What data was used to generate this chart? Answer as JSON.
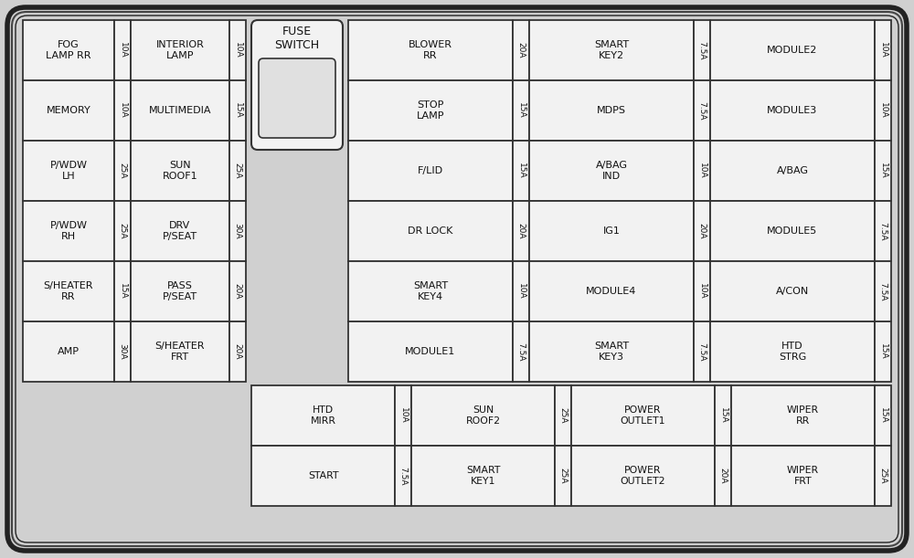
{
  "bg_color": "#d0d0d0",
  "cell_bg": "#f2f2f2",
  "cell_edge": "#333333",
  "figsize": [
    10.0,
    6.11
  ],
  "left_fuses": [
    [
      [
        "FOG\nLAMP RR",
        "10A"
      ],
      [
        "INTERIOR\nLAMP",
        "10A"
      ]
    ],
    [
      [
        "MEMORY",
        "10A"
      ],
      [
        "MULTIMEDIA",
        "15A"
      ]
    ],
    [
      [
        "P/WDW\nLH",
        "25A"
      ],
      [
        "SUN\nROOF1",
        "25A"
      ]
    ],
    [
      [
        "P/WDW\nRH",
        "25A"
      ],
      [
        "DRV\nP/SEAT",
        "30A"
      ]
    ],
    [
      [
        "S/HEATER\nRR",
        "15A"
      ],
      [
        "PASS\nP/SEAT",
        "20A"
      ]
    ],
    [
      [
        "AMP",
        "30A"
      ],
      [
        "S/HEATER\nFRT",
        "20A"
      ]
    ]
  ],
  "right_fuses": [
    [
      [
        "BLOWER\nRR",
        "20A"
      ],
      [
        "SMART\nKEY2",
        "7.5A"
      ],
      [
        "MODULE2",
        "10A"
      ]
    ],
    [
      [
        "STOP\nLAMP",
        "15A"
      ],
      [
        "MDPS",
        "7.5A"
      ],
      [
        "MODULE3",
        "10A"
      ]
    ],
    [
      [
        "F/LID",
        "15A"
      ],
      [
        "A/BAG\nIND",
        "10A"
      ],
      [
        "A/BAG",
        "15A"
      ]
    ],
    [
      [
        "DR LOCK",
        "20A"
      ],
      [
        "IG1",
        "20A"
      ],
      [
        "MODULE5",
        "7.5A"
      ]
    ],
    [
      [
        "SMART\nKEY4",
        "10A"
      ],
      [
        "MODULE4",
        "10A"
      ],
      [
        "A/CON",
        "7.5A"
      ]
    ],
    [
      [
        "MODULE1",
        "7.5A"
      ],
      [
        "SMART\nKEY3",
        "7.5A"
      ],
      [
        "HTD\nSTRG",
        "15A"
      ]
    ]
  ],
  "bottom_fuses": [
    [
      [
        "HTD\nMIRR",
        "10A"
      ],
      [
        "SUN\nROOF2",
        "25A"
      ],
      [
        "POWER\nOUTLET1",
        "15A"
      ],
      [
        "WIPER\nRR",
        "15A"
      ]
    ],
    [
      [
        "START",
        "7.5A"
      ],
      [
        "SMART\nKEY1",
        "25A"
      ],
      [
        "POWER\nOUTLET2",
        "20A"
      ],
      [
        "WIPER\nFRT",
        "25A"
      ]
    ]
  ]
}
